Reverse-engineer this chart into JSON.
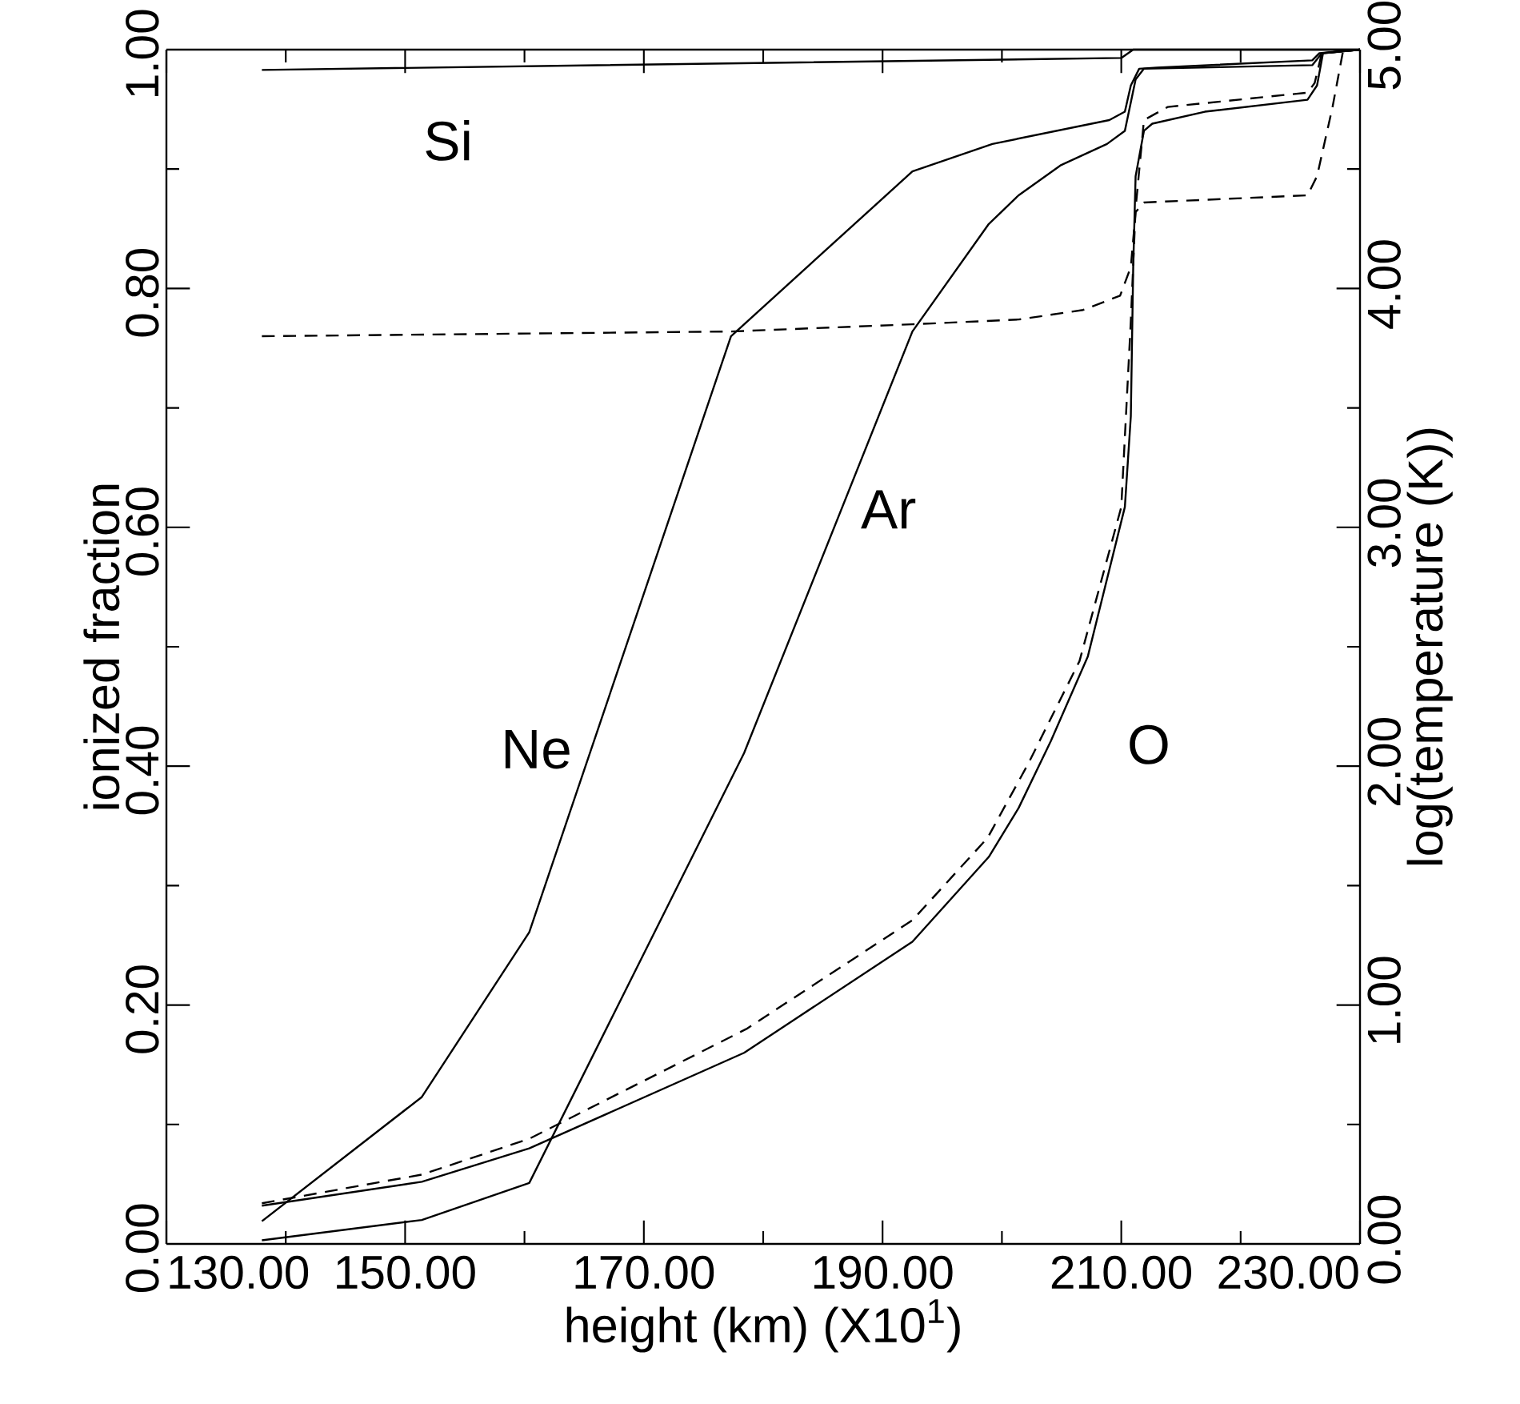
{
  "chart_data": {
    "type": "line",
    "xlabel": "height (km) (X10$^{1}$)",
    "ylabel": "ionized fraction",
    "y2label": "log(temperature (K))",
    "xlim": [
      130,
      230
    ],
    "ylim": [
      0,
      1
    ],
    "y2lim": [
      0,
      5
    ],
    "xticks": [
      {
        "value": 130,
        "label": "130.00"
      },
      {
        "value": 140,
        "label": null
      },
      {
        "value": 150,
        "label": "150.00"
      },
      {
        "value": 160,
        "label": null
      },
      {
        "value": 170,
        "label": "170.00"
      },
      {
        "value": 180,
        "label": null
      },
      {
        "value": 190,
        "label": "190.00"
      },
      {
        "value": 200,
        "label": null
      },
      {
        "value": 210,
        "label": "210.00"
      },
      {
        "value": 220,
        "label": null
      },
      {
        "value": 230,
        "label": "230.00"
      }
    ],
    "yticks": [
      {
        "value": 0,
        "label": "0.00"
      },
      {
        "value": 0.1,
        "label": null
      },
      {
        "value": 0.2,
        "label": "0.20"
      },
      {
        "value": 0.3,
        "label": null
      },
      {
        "value": 0.4,
        "label": "0.40"
      },
      {
        "value": 0.5,
        "label": null
      },
      {
        "value": 0.6,
        "label": "0.60"
      },
      {
        "value": 0.7,
        "label": null
      },
      {
        "value": 0.8,
        "label": "0.80"
      },
      {
        "value": 0.9,
        "label": null
      },
      {
        "value": 1,
        "label": "1.00"
      }
    ],
    "y2ticks": [
      {
        "value": 0,
        "label": "0.00"
      },
      {
        "value": 0.5,
        "label": null
      },
      {
        "value": 1,
        "label": "1.00"
      },
      {
        "value": 1.5,
        "label": null
      },
      {
        "value": 2,
        "label": "2.00"
      },
      {
        "value": 2.5,
        "label": null
      },
      {
        "value": 3,
        "label": "3.00"
      },
      {
        "value": 3.5,
        "label": null
      },
      {
        "value": 4,
        "label": "4.00"
      },
      {
        "value": 4.5,
        "label": null
      },
      {
        "value": 5,
        "label": "5.00"
      }
    ],
    "series": [
      {
        "color": "#000000",
        "line_style": "solid",
        "x": [
          138,
          210,
          211,
          230
        ],
        "values": [
          0.983,
          0.993,
          1.0,
          1.0
        ]
      },
      {
        "color": "#000000",
        "line_style": "solid",
        "x": [
          138,
          151.4,
          160.4,
          177.3,
          192.5,
          199.2,
          209.0,
          210.3,
          210.8,
          211.5,
          213.0,
          226.0,
          226.6,
          230
        ],
        "values": [
          0.019,
          0.123,
          0.261,
          0.76,
          0.898,
          0.921,
          0.941,
          0.948,
          0.97,
          0.984,
          0.985,
          0.991,
          0.997,
          1.0
        ]
      },
      {
        "color": "#000000",
        "line_style": "solid",
        "x": [
          138,
          151.4,
          160.4,
          178.4,
          192.5,
          198.9,
          201.4,
          204.9,
          208.8,
          210.3,
          211.2,
          211.9,
          226.0,
          226.8,
          230
        ],
        "values": [
          0.003,
          0.02,
          0.051,
          0.411,
          0.764,
          0.854,
          0.878,
          0.903,
          0.921,
          0.932,
          0.975,
          0.984,
          0.987,
          0.997,
          1.0
        ]
      },
      {
        "color": "#000000",
        "line_style": "solid",
        "x": [
          138,
          151.4,
          160.4,
          178.4,
          192.5,
          198.9,
          201.4,
          204.1,
          207.2,
          210.3,
          210.8,
          211.0,
          211.2,
          211.9,
          212.6,
          217.0,
          225.6,
          226.4,
          226.9,
          230
        ],
        "values": [
          0.032,
          0.052,
          0.08,
          0.16,
          0.253,
          0.324,
          0.365,
          0.421,
          0.492,
          0.617,
          0.693,
          0.818,
          0.894,
          0.932,
          0.938,
          0.948,
          0.958,
          0.97,
          0.997,
          1.0
        ]
      },
      {
        "color": "#000000",
        "line_style": "dashed",
        "x": [
          138,
          151.4,
          160.4,
          178.6,
          192.5,
          198.8,
          202.2,
          206.5,
          210.0,
          210.8,
          211.2,
          211.9,
          213.9,
          225.6,
          226.2,
          226.8,
          230
        ],
        "values": [
          0.034,
          0.058,
          0.088,
          0.18,
          0.271,
          0.34,
          0.402,
          0.488,
          0.617,
          0.773,
          0.867,
          0.941,
          0.952,
          0.964,
          0.972,
          0.997,
          1.0
        ]
      },
      {
        "color": "#000000",
        "line_style": "dashed",
        "axis": "y2",
        "x": [
          138,
          177.3,
          192.5,
          201.4,
          206.8,
          209.9,
          210.8,
          211.2,
          211.9,
          225.6,
          226.4,
          227.7,
          228.6
        ],
        "values": [
          3.8,
          3.82,
          3.85,
          3.87,
          3.91,
          3.97,
          4.09,
          4.32,
          4.36,
          4.39,
          4.47,
          4.76,
          5.0
        ]
      }
    ],
    "annotations": [
      "Si",
      "Ne",
      "Ar",
      "O"
    ]
  }
}
